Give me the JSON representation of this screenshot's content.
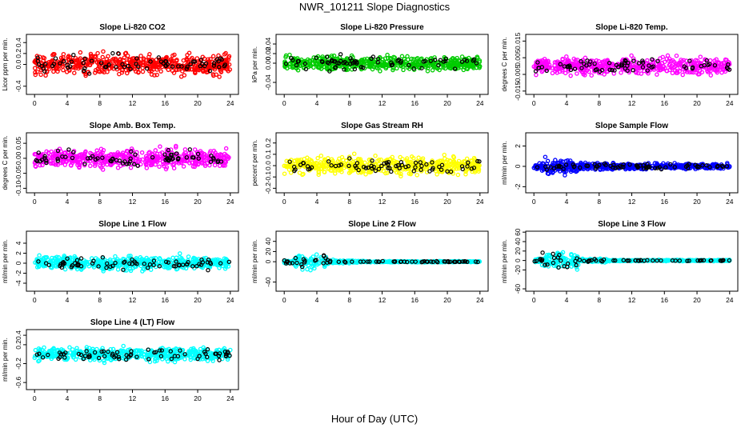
{
  "figure": {
    "title": "NWR_101211  Slope Diagnostics",
    "xlabel": "Hour of Day (UTC)"
  },
  "chart_data": [
    {
      "type": "scatter",
      "title": "Slope Li-820 CO2",
      "ylabel": "Licor ppm per min.",
      "x_ticks": [
        0,
        4,
        8,
        12,
        16,
        20,
        24
      ],
      "y_ticks": [
        "-0.4",
        "0.0",
        "0.2",
        "0.4"
      ],
      "y_tick_values": [
        -0.4,
        0.0,
        0.2,
        0.4
      ],
      "ylim": [
        -0.55,
        0.55
      ],
      "xlim": [
        -1,
        25
      ],
      "color": "#ff0000",
      "spread": 0.28
    },
    {
      "type": "scatter",
      "title": "Slope Li-820 Pressure",
      "ylabel": "kPa per min.",
      "x_ticks": [
        0,
        4,
        8,
        12,
        16,
        20,
        24
      ],
      "y_ticks": [
        "-0.04",
        "0.00",
        "0.02",
        "0.04"
      ],
      "y_tick_values": [
        -0.04,
        0.0,
        0.02,
        0.04
      ],
      "ylim": [
        -0.065,
        0.06
      ],
      "xlim": [
        -1,
        25
      ],
      "color": "#00cc00",
      "spread": 0.022
    },
    {
      "type": "scatter",
      "title": "Slope Li-820 Temp.",
      "ylabel": "degrees C per min.",
      "x_ticks": [
        0,
        4,
        8,
        12,
        16,
        20,
        24
      ],
      "y_ticks": [
        "-0.015",
        "-0.005",
        "0.005",
        "0.015"
      ],
      "y_tick_values": [
        -0.015,
        -0.005,
        0.005,
        0.015
      ],
      "ylim": [
        -0.017,
        0.019
      ],
      "xlim": [
        -1,
        25
      ],
      "color": "#ff00ff",
      "spread": 0.007
    },
    {
      "type": "scatter",
      "title": "Slope Amb. Box Temp.",
      "ylabel": "degrees C per min.",
      "x_ticks": [
        0,
        4,
        8,
        12,
        16,
        20,
        24
      ],
      "y_ticks": [
        "-0.10",
        "-0.05",
        "0.00",
        "0.05"
      ],
      "y_tick_values": [
        -0.1,
        -0.05,
        0.0,
        0.05
      ],
      "ylim": [
        -0.115,
        0.085
      ],
      "xlim": [
        -1,
        25
      ],
      "color": "#ff00ff",
      "spread": 0.045
    },
    {
      "type": "scatter",
      "title": "Slope Gas Stream RH",
      "ylabel": "percent per min.",
      "x_ticks": [
        0,
        4,
        8,
        12,
        16,
        20,
        24
      ],
      "y_ticks": [
        "-0.2",
        "-0.1",
        "0.0",
        "0.1",
        "0.2"
      ],
      "y_tick_values": [
        -0.2,
        -0.1,
        0.0,
        0.1,
        0.2
      ],
      "ylim": [
        -0.24,
        0.29
      ],
      "xlim": [
        -1,
        25
      ],
      "color": "#ffff00",
      "spread": 0.11
    },
    {
      "type": "scatter",
      "title": "Slope Sample Flow",
      "ylabel": "ml/min per min.",
      "x_ticks": [
        0,
        4,
        8,
        12,
        16,
        20,
        24
      ],
      "y_ticks": [
        "-2",
        "0",
        "2"
      ],
      "y_tick_values": [
        -2,
        0,
        2
      ],
      "ylim": [
        -2.6,
        3.3
      ],
      "xlim": [
        -1,
        25
      ],
      "color": "#0000ff",
      "spread": 0.45
    },
    {
      "type": "scatter",
      "title": "Slope Line 1 Flow",
      "ylabel": "ml/min per min.",
      "x_ticks": [
        0,
        4,
        8,
        12,
        16,
        20,
        24
      ],
      "y_ticks": [
        "-4",
        "-2",
        "0",
        "2",
        "4"
      ],
      "y_tick_values": [
        -4,
        -2,
        0,
        2,
        4
      ],
      "ylim": [
        -5.6,
        6.4
      ],
      "xlim": [
        -1,
        25
      ],
      "color": "#00ffff",
      "spread": 2.0
    },
    {
      "type": "scatter",
      "title": "Slope Line 2 Flow",
      "ylabel": "ml/min per min.",
      "x_ticks": [
        0,
        4,
        8,
        12,
        16,
        20,
        24
      ],
      "y_ticks": [
        "-40",
        "0",
        "20",
        "40"
      ],
      "y_tick_values": [
        -40,
        0,
        20,
        40
      ],
      "ylim": [
        -58,
        60
      ],
      "xlim": [
        -1,
        25
      ],
      "color": "#00ffff",
      "spread": 5
    },
    {
      "type": "scatter",
      "title": "Slope Line 3 Flow",
      "ylabel": "ml/min per min.",
      "x_ticks": [
        0,
        4,
        8,
        12,
        16,
        20,
        24
      ],
      "y_ticks": [
        "-60",
        "-20",
        "0",
        "20",
        "40",
        "60"
      ],
      "y_tick_values": [
        -60,
        -20,
        0,
        20,
        40,
        60
      ],
      "ylim": [
        -65,
        62
      ],
      "xlim": [
        -1,
        25
      ],
      "color": "#00ffff",
      "spread": 6
    },
    {
      "type": "scatter",
      "title": "Slope Line 4 (LT) Flow",
      "ylabel": "ml/min per min.",
      "x_ticks": [
        0,
        4,
        8,
        12,
        16,
        20,
        24
      ],
      "y_ticks": [
        "-0.6",
        "-0.2",
        "0.2",
        "0.4"
      ],
      "y_tick_values": [
        -0.6,
        -0.2,
        0.2,
        0.4
      ],
      "ylim": [
        -0.75,
        0.52
      ],
      "xlim": [
        -1,
        25
      ],
      "color": "#00ffff",
      "spread": 0.2
    }
  ]
}
